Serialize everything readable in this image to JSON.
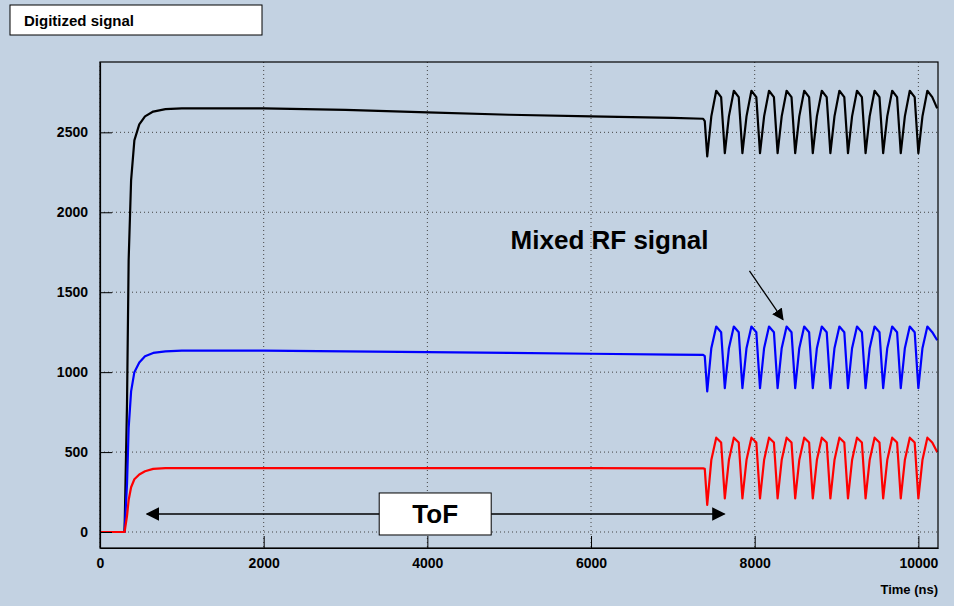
{
  "chart_data": {
    "type": "line",
    "title": "Digitized signal",
    "x_label": "Time (ns)",
    "annotations": [
      "Mixed RF signal",
      "ToF"
    ],
    "xlim": [
      0,
      10240
    ],
    "ylim": [
      -100,
      2940
    ],
    "xticks": [
      0,
      2000,
      4000,
      6000,
      8000,
      10000
    ],
    "yticks": [
      0,
      500,
      1000,
      1500,
      2000,
      2500
    ],
    "grid": true,
    "x": [
      0,
      300,
      330,
      350,
      380,
      420,
      480,
      550,
      650,
      800,
      1000,
      1300,
      2000,
      3000,
      4000,
      5000,
      6000,
      7000,
      7370,
      7390,
      7420,
      7470,
      7530,
      7590,
      7635,
      7685,
      7745,
      7805,
      7850,
      7900,
      7960,
      8020,
      8065,
      8115,
      8175,
      8235,
      8280,
      8330,
      8390,
      8450,
      8495,
      8545,
      8605,
      8665,
      8710,
      8760,
      8820,
      8880,
      8925,
      8975,
      9035,
      9095,
      9140,
      9190,
      9250,
      9310,
      9355,
      9405,
      9465,
      9525,
      9570,
      9620,
      9680,
      9740,
      9785,
      9835,
      9895,
      9955,
      10000,
      10050,
      10110,
      10170,
      10230
    ],
    "series": [
      {
        "color": "#000000",
        "values": [
          0,
          0,
          800,
          1700,
          2200,
          2450,
          2550,
          2600,
          2630,
          2645,
          2650,
          2650,
          2650,
          2640,
          2625,
          2610,
          2600,
          2590,
          2585,
          2570,
          2350,
          2600,
          2760,
          2720,
          2370,
          2600,
          2760,
          2720,
          2370,
          2600,
          2760,
          2720,
          2370,
          2600,
          2760,
          2720,
          2370,
          2600,
          2760,
          2720,
          2370,
          2600,
          2760,
          2720,
          2370,
          2600,
          2760,
          2720,
          2370,
          2600,
          2760,
          2720,
          2370,
          2600,
          2760,
          2720,
          2370,
          2600,
          2760,
          2720,
          2370,
          2600,
          2760,
          2720,
          2370,
          2600,
          2760,
          2720,
          2370,
          2600,
          2760,
          2720,
          2650
        ]
      },
      {
        "color": "#0000ff",
        "values": [
          0,
          0,
          300,
          650,
          880,
          1000,
          1060,
          1100,
          1120,
          1130,
          1135,
          1135,
          1135,
          1130,
          1125,
          1120,
          1115,
          1110,
          1108,
          1100,
          880,
          1150,
          1285,
          1250,
          900,
          1150,
          1285,
          1250,
          900,
          1150,
          1285,
          1250,
          900,
          1150,
          1285,
          1250,
          900,
          1150,
          1285,
          1250,
          900,
          1150,
          1285,
          1250,
          900,
          1150,
          1285,
          1250,
          900,
          1150,
          1285,
          1250,
          900,
          1150,
          1285,
          1250,
          900,
          1150,
          1285,
          1250,
          900,
          1150,
          1285,
          1250,
          900,
          1150,
          1285,
          1250,
          900,
          1150,
          1285,
          1250,
          1200
        ]
      },
      {
        "color": "#ff0000",
        "values": [
          0,
          0,
          100,
          200,
          280,
          330,
          360,
          380,
          395,
          400,
          400,
          400,
          400,
          400,
          400,
          400,
          400,
          398,
          398,
          395,
          170,
          450,
          590,
          560,
          210,
          450,
          590,
          560,
          210,
          450,
          590,
          560,
          210,
          450,
          590,
          560,
          210,
          450,
          590,
          560,
          210,
          450,
          590,
          560,
          210,
          450,
          590,
          560,
          210,
          450,
          590,
          560,
          210,
          450,
          590,
          560,
          210,
          450,
          590,
          560,
          210,
          450,
          590,
          560,
          210,
          450,
          590,
          560,
          210,
          450,
          590,
          560,
          500
        ]
      }
    ]
  }
}
